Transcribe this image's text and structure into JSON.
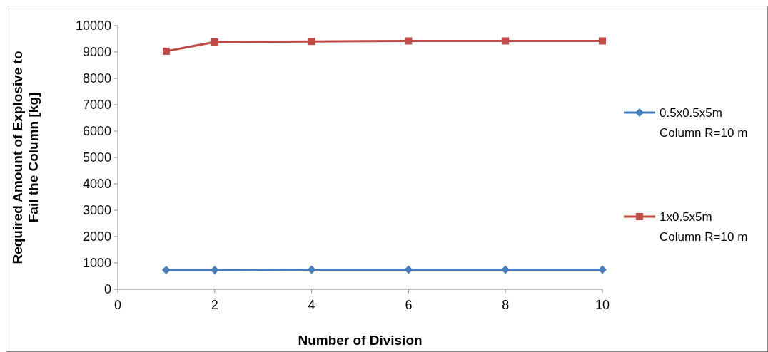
{
  "chart_data": {
    "type": "line",
    "xlabel": "Number of Division",
    "ylabel": "Required Amount of Explosive to Fail the Column [kg]",
    "x": [
      1,
      2,
      4,
      6,
      8,
      10
    ],
    "series": [
      {
        "name": "0.5x0.5x5m Column R=10 m",
        "color": "#4a7ebb",
        "marker": "diamond",
        "values": [
          730,
          730,
          740,
          740,
          740,
          740
        ]
      },
      {
        "name": "1x0.5x5m Column R=10 m",
        "color": "#be4b48",
        "marker": "square",
        "values": [
          9030,
          9380,
          9400,
          9420,
          9420,
          9420
        ]
      }
    ],
    "xlim": [
      0,
      10
    ],
    "xticks": [
      0,
      2,
      4,
      6,
      8,
      10
    ],
    "ylim": [
      0,
      10000
    ],
    "yticks": [
      0,
      1000,
      2000,
      3000,
      4000,
      5000,
      6000,
      7000,
      8000,
      9000,
      10000
    ],
    "grid": false,
    "legend": "right",
    "line_style": "solid"
  }
}
